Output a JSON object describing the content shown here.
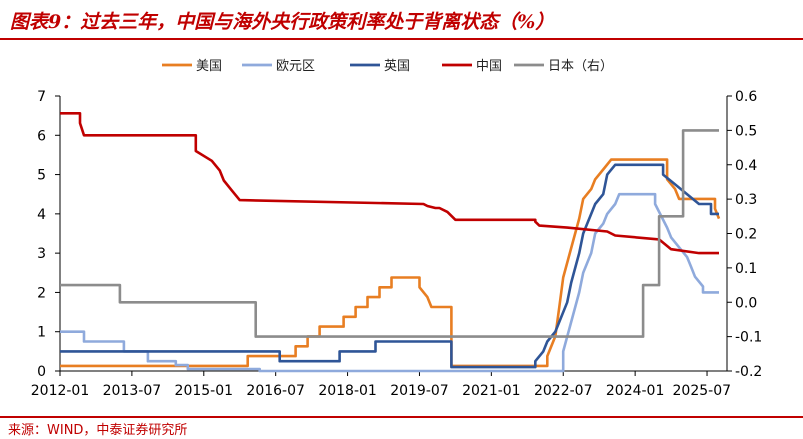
{
  "title": "图表9：过去三年，中国与海外央行政策利率处于背离状态（%）",
  "source": "来源：WIND，中泰证券研究所",
  "chart_data": {
    "type": "line",
    "title": "图表9：过去三年，中国与海外央行政策利率处于背离状态（%）",
    "xlabel": "",
    "ylabel": "",
    "y2label": "",
    "grid": false,
    "legend_position": "top",
    "x_range": [
      "2012-01",
      "2025-12"
    ],
    "y_left": {
      "range": [
        0,
        7
      ],
      "ticks": [
        "0",
        "1",
        "2",
        "3",
        "4",
        "5",
        "6",
        "7"
      ]
    },
    "y_right": {
      "range": [
        -0.2,
        0.6
      ],
      "ticks": [
        "-0.2",
        "-0.1",
        "0.0",
        "0.1",
        "0.2",
        "0.3",
        "0.4",
        "0.5",
        "0.6"
      ]
    },
    "x_ticks": [
      "2012-01",
      "2013-07",
      "2015-01",
      "2016-07",
      "2018-01",
      "2019-07",
      "2021-01",
      "2022-07",
      "2024-01",
      "2025-07"
    ],
    "series": [
      {
        "name": "美国",
        "axis": "left",
        "color": "#e87e22",
        "points": [
          [
            "2012-01",
            0.13
          ],
          [
            "2015-12",
            0.13
          ],
          [
            "2015-12",
            0.38
          ],
          [
            "2016-12",
            0.38
          ],
          [
            "2016-12",
            0.63
          ],
          [
            "2017-03",
            0.63
          ],
          [
            "2017-03",
            0.88
          ],
          [
            "2017-06",
            0.88
          ],
          [
            "2017-06",
            1.13
          ],
          [
            "2017-12",
            1.13
          ],
          [
            "2017-12",
            1.38
          ],
          [
            "2018-03",
            1.38
          ],
          [
            "2018-03",
            1.63
          ],
          [
            "2018-06",
            1.63
          ],
          [
            "2018-06",
            1.88
          ],
          [
            "2018-09",
            1.88
          ],
          [
            "2018-09",
            2.13
          ],
          [
            "2018-12",
            2.13
          ],
          [
            "2018-12",
            2.38
          ],
          [
            "2019-07",
            2.38
          ],
          [
            "2019-07",
            2.13
          ],
          [
            "2019-09",
            1.88
          ],
          [
            "2019-10",
            1.63
          ],
          [
            "2020-03",
            1.63
          ],
          [
            "2020-03",
            0.13
          ],
          [
            "2022-03",
            0.13
          ],
          [
            "2022-03",
            0.38
          ],
          [
            "2022-05",
            0.88
          ],
          [
            "2022-06",
            1.63
          ],
          [
            "2022-07",
            2.38
          ],
          [
            "2022-09",
            3.13
          ],
          [
            "2022-11",
            3.88
          ],
          [
            "2022-12",
            4.38
          ],
          [
            "2023-02",
            4.63
          ],
          [
            "2023-03",
            4.88
          ],
          [
            "2023-05",
            5.13
          ],
          [
            "2023-07",
            5.38
          ],
          [
            "2024-09",
            5.38
          ],
          [
            "2024-09",
            4.88
          ],
          [
            "2024-11",
            4.63
          ],
          [
            "2024-12",
            4.38
          ],
          [
            "2025-09",
            4.38
          ],
          [
            "2025-09",
            4.13
          ],
          [
            "2025-10",
            3.88
          ]
        ]
      },
      {
        "name": "欧元区",
        "axis": "left",
        "color": "#8faadc",
        "points": [
          [
            "2012-01",
            1.0
          ],
          [
            "2012-07",
            1.0
          ],
          [
            "2012-07",
            0.75
          ],
          [
            "2013-05",
            0.75
          ],
          [
            "2013-05",
            0.5
          ],
          [
            "2013-11",
            0.5
          ],
          [
            "2013-11",
            0.25
          ],
          [
            "2014-06",
            0.25
          ],
          [
            "2014-06",
            0.15
          ],
          [
            "2014-09",
            0.15
          ],
          [
            "2014-09",
            0.05
          ],
          [
            "2016-03",
            0.05
          ],
          [
            "2016-03",
            0.0
          ],
          [
            "2022-07",
            0.0
          ],
          [
            "2022-07",
            0.5
          ],
          [
            "2022-09",
            1.25
          ],
          [
            "2022-11",
            2.0
          ],
          [
            "2022-12",
            2.5
          ],
          [
            "2023-02",
            3.0
          ],
          [
            "2023-03",
            3.5
          ],
          [
            "2023-05",
            3.75
          ],
          [
            "2023-06",
            4.0
          ],
          [
            "2023-08",
            4.25
          ],
          [
            "2023-09",
            4.5
          ],
          [
            "2024-06",
            4.5
          ],
          [
            "2024-06",
            4.25
          ],
          [
            "2024-09",
            3.65
          ],
          [
            "2024-10",
            3.4
          ],
          [
            "2024-12",
            3.15
          ],
          [
            "2025-02",
            2.9
          ],
          [
            "2025-03",
            2.65
          ],
          [
            "2025-04",
            2.4
          ],
          [
            "2025-06",
            2.15
          ],
          [
            "2025-06",
            2.0
          ],
          [
            "2025-10",
            2.0
          ]
        ]
      },
      {
        "name": "英国",
        "axis": "left",
        "color": "#2f5597",
        "points": [
          [
            "2012-01",
            0.5
          ],
          [
            "2016-08",
            0.5
          ],
          [
            "2016-08",
            0.25
          ],
          [
            "2017-11",
            0.25
          ],
          [
            "2017-11",
            0.5
          ],
          [
            "2018-08",
            0.5
          ],
          [
            "2018-08",
            0.75
          ],
          [
            "2020-03",
            0.75
          ],
          [
            "2020-03",
            0.1
          ],
          [
            "2021-12",
            0.1
          ],
          [
            "2021-12",
            0.25
          ],
          [
            "2022-02",
            0.5
          ],
          [
            "2022-03",
            0.75
          ],
          [
            "2022-05",
            1.0
          ],
          [
            "2022-06",
            1.25
          ],
          [
            "2022-08",
            1.75
          ],
          [
            "2022-09",
            2.25
          ],
          [
            "2022-11",
            3.0
          ],
          [
            "2022-12",
            3.5
          ],
          [
            "2023-02",
            4.0
          ],
          [
            "2023-03",
            4.25
          ],
          [
            "2023-05",
            4.5
          ],
          [
            "2023-06",
            5.0
          ],
          [
            "2023-08",
            5.25
          ],
          [
            "2024-08",
            5.25
          ],
          [
            "2024-08",
            5.0
          ],
          [
            "2024-11",
            4.75
          ],
          [
            "2025-02",
            4.5
          ],
          [
            "2025-05",
            4.25
          ],
          [
            "2025-08",
            4.25
          ],
          [
            "2025-08",
            4.0
          ],
          [
            "2025-10",
            4.0
          ]
        ]
      },
      {
        "name": "中国",
        "axis": "left",
        "color": "#c00000",
        "points": [
          [
            "2012-01",
            6.56
          ],
          [
            "2012-06",
            6.56
          ],
          [
            "2012-06",
            6.31
          ],
          [
            "2012-07",
            6.0
          ],
          [
            "2014-11",
            6.0
          ],
          [
            "2014-11",
            5.6
          ],
          [
            "2015-03",
            5.35
          ],
          [
            "2015-05",
            5.1
          ],
          [
            "2015-06",
            4.85
          ],
          [
            "2015-08",
            4.6
          ],
          [
            "2015-10",
            4.35
          ],
          [
            "2019-08",
            4.25
          ],
          [
            "2019-09",
            4.2
          ],
          [
            "2019-11",
            4.15
          ],
          [
            "2019-12",
            4.15
          ],
          [
            "2020-02",
            4.05
          ],
          [
            "2020-04",
            3.85
          ],
          [
            "2021-12",
            3.85
          ],
          [
            "2021-12",
            3.8
          ],
          [
            "2022-01",
            3.7
          ],
          [
            "2022-08",
            3.65
          ],
          [
            "2023-06",
            3.55
          ],
          [
            "2023-08",
            3.45
          ],
          [
            "2024-07",
            3.35
          ],
          [
            "2024-10",
            3.1
          ],
          [
            "2025-05",
            3.0
          ],
          [
            "2025-10",
            3.0
          ]
        ]
      },
      {
        "name": "日本（右）",
        "axis": "right",
        "color": "#8c8c8c",
        "points": [
          [
            "2012-01",
            0.05
          ],
          [
            "2013-04",
            0.05
          ],
          [
            "2013-04",
            0.0
          ],
          [
            "2016-02",
            0.0
          ],
          [
            "2016-02",
            -0.1
          ],
          [
            "2024-03",
            -0.1
          ],
          [
            "2024-03",
            0.05
          ],
          [
            "2024-07",
            0.05
          ],
          [
            "2024-07",
            0.25
          ],
          [
            "2025-01",
            0.25
          ],
          [
            "2025-01",
            0.5
          ],
          [
            "2025-10",
            0.5
          ]
        ]
      }
    ]
  }
}
